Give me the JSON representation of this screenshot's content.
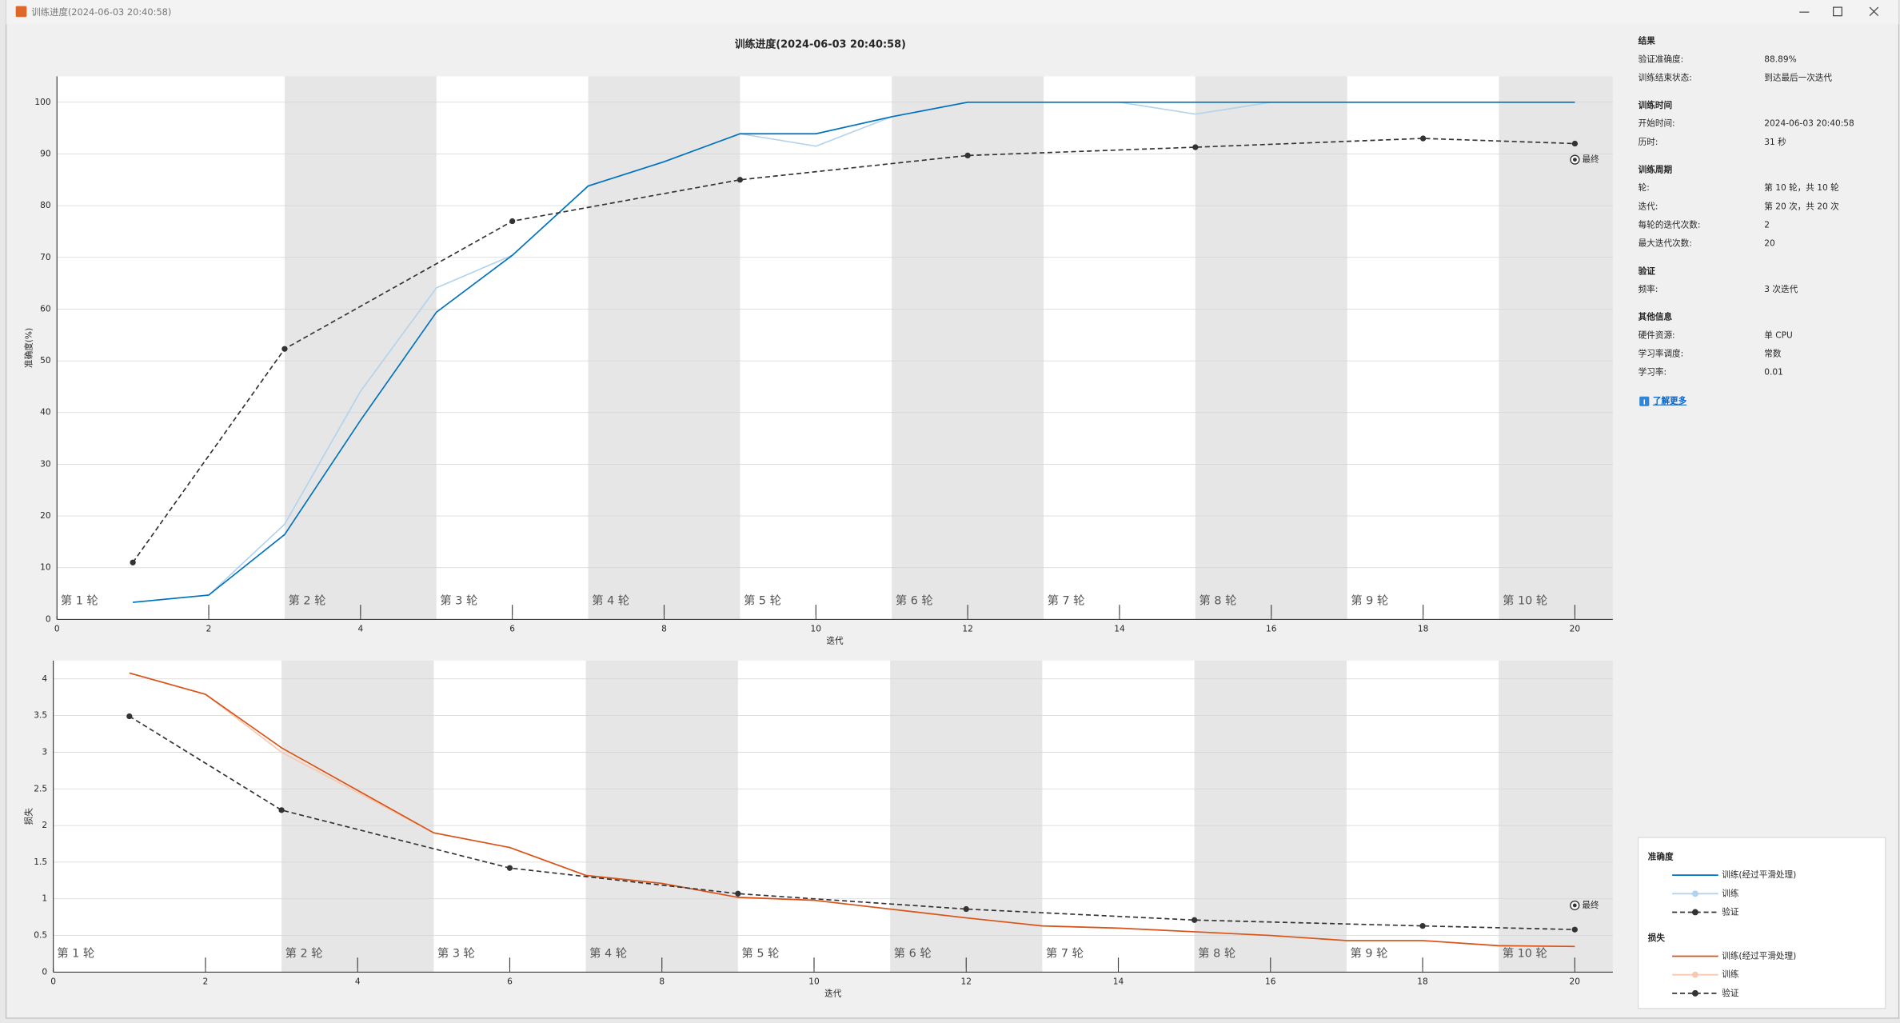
{
  "window": {
    "title": "训练进度(2024-06-03 20:40:58)"
  },
  "title": "训练进度(2024-06-03 20:40:58)",
  "chart_data": [
    {
      "type": "line",
      "ylabel": "准确度(%)",
      "xlabel": "迭代",
      "legend_title": "准确度",
      "xlim": [
        0,
        20.5
      ],
      "ylim": [
        0,
        105
      ],
      "xticks": [
        0,
        2,
        4,
        6,
        8,
        10,
        12,
        14,
        16,
        18,
        20
      ],
      "yticks": [
        0,
        10,
        20,
        30,
        40,
        50,
        60,
        70,
        80,
        90,
        100
      ],
      "grid": true,
      "epochs": {
        "labels": [
          "第 1 轮",
          "第 2 轮",
          "第 3 轮",
          "第 4 轮",
          "第 5 轮",
          "第 6 轮",
          "第 7 轮",
          "第 8 轮",
          "第 9 轮",
          "第 10 轮"
        ],
        "starts": [
          0,
          3,
          5,
          7,
          9,
          11,
          13,
          15,
          17,
          19
        ]
      },
      "series": [
        {
          "name": "训练(经过平滑处理)",
          "color": "#0072bd",
          "x": [
            1,
            2,
            3,
            4,
            5,
            6,
            7,
            8,
            9,
            10,
            11,
            12,
            13,
            14,
            15,
            16,
            17,
            18,
            19,
            20
          ],
          "values": [
            3.3,
            4.7,
            16.4,
            38.5,
            59.4,
            70.4,
            83.8,
            88.5,
            93.9,
            93.9,
            97.2,
            100,
            100,
            100,
            100,
            100,
            100,
            100,
            100,
            100
          ]
        },
        {
          "name": "训练",
          "color": "#b3d3ec",
          "x": [
            1,
            2,
            3,
            4,
            5,
            6,
            7,
            8,
            9,
            10,
            11,
            12,
            13,
            14,
            15,
            16,
            17,
            18,
            19,
            20
          ],
          "values": [
            3.3,
            4.7,
            18.4,
            44.1,
            64.1,
            70.4,
            83.8,
            88.5,
            93.9,
            91.5,
            97.2,
            100,
            100,
            100,
            97.7,
            100,
            100,
            100,
            100,
            100
          ]
        },
        {
          "name": "验证",
          "color": "#333333",
          "dashed": true,
          "marker": true,
          "x": [
            1,
            3,
            6,
            9,
            12,
            15,
            18,
            20
          ],
          "values": [
            11.0,
            52.3,
            77.0,
            85.0,
            89.7,
            91.3,
            93.0,
            92.0
          ]
        }
      ],
      "final": {
        "x": 20,
        "value": 88.89,
        "label": "最终"
      }
    },
    {
      "type": "line",
      "ylabel": "损失",
      "xlabel": "迭代",
      "legend_title": "损失",
      "xlim": [
        0,
        20.5
      ],
      "ylim": [
        0,
        4.25
      ],
      "xticks": [
        0,
        2,
        4,
        6,
        8,
        10,
        12,
        14,
        16,
        18,
        20
      ],
      "yticks": [
        0,
        0.5,
        1,
        1.5,
        2,
        2.5,
        3,
        3.5,
        4
      ],
      "grid": true,
      "epochs": {
        "labels": [
          "第 1 轮",
          "第 2 轮",
          "第 3 轮",
          "第 4 轮",
          "第 5 轮",
          "第 6 轮",
          "第 7 轮",
          "第 8 轮",
          "第 9 轮",
          "第 10 轮"
        ],
        "starts": [
          0,
          3,
          5,
          7,
          9,
          11,
          13,
          15,
          17,
          19
        ]
      },
      "series": [
        {
          "name": "训练(经过平滑处理)",
          "color": "#d95319",
          "x": [
            1,
            2,
            3,
            4,
            5,
            6,
            7,
            8,
            9,
            10,
            11,
            12,
            13,
            14,
            15,
            16,
            17,
            18,
            19,
            20
          ],
          "values": [
            4.08,
            3.79,
            3.06,
            2.48,
            1.9,
            1.7,
            1.32,
            1.21,
            1.02,
            0.98,
            0.86,
            0.74,
            0.63,
            0.6,
            0.55,
            0.5,
            0.43,
            0.43,
            0.36,
            0.35
          ]
        },
        {
          "name": "训练",
          "color": "#f6c9b0",
          "x": [
            1,
            2,
            3,
            4,
            5,
            6,
            7,
            8,
            9,
            10,
            11,
            12,
            13,
            14,
            15,
            16,
            17,
            18,
            19,
            20
          ],
          "values": [
            4.08,
            3.79,
            3.0,
            2.45,
            1.9,
            1.7,
            1.32,
            1.21,
            1.02,
            0.98,
            0.86,
            0.74,
            0.63,
            0.6,
            0.55,
            0.5,
            0.43,
            0.43,
            0.36,
            0.35
          ]
        },
        {
          "name": "验证",
          "color": "#333333",
          "dashed": true,
          "marker": true,
          "x": [
            1,
            3,
            6,
            9,
            12,
            15,
            18,
            20
          ],
          "values": [
            3.49,
            2.21,
            1.42,
            1.07,
            0.86,
            0.71,
            0.63,
            0.58
          ]
        }
      ],
      "final": {
        "x": 20,
        "value": 0.91,
        "label": "最终"
      }
    }
  ],
  "panel": {
    "sections": [
      {
        "title": "结果",
        "rows": [
          {
            "label": "验证准确度:",
            "value": "88.89%"
          },
          {
            "label": "训练结束状态:",
            "value": "到达最后一次迭代"
          }
        ]
      },
      {
        "title": "训练时间",
        "rows": [
          {
            "label": "开始时间:",
            "value": "2024-06-03 20:40:58"
          },
          {
            "label": "历时:",
            "value": "31 秒"
          }
        ]
      },
      {
        "title": "训练周期",
        "rows": [
          {
            "label": "轮:",
            "value": "第 10 轮，共 10 轮"
          },
          {
            "label": "迭代:",
            "value": "第 20 次，共 20 次"
          },
          {
            "label": "每轮的迭代次数:",
            "value": "2"
          },
          {
            "label": "最大迭代次数:",
            "value": "20"
          }
        ]
      },
      {
        "title": "验证",
        "rows": [
          {
            "label": "频率:",
            "value": "3 次迭代"
          }
        ]
      },
      {
        "title": "其他信息",
        "rows": [
          {
            "label": "硬件资源:",
            "value": "单 CPU"
          },
          {
            "label": "学习率调度:",
            "value": "常数"
          },
          {
            "label": "学习率:",
            "value": "0.01"
          }
        ]
      }
    ],
    "link": "了解更多"
  }
}
